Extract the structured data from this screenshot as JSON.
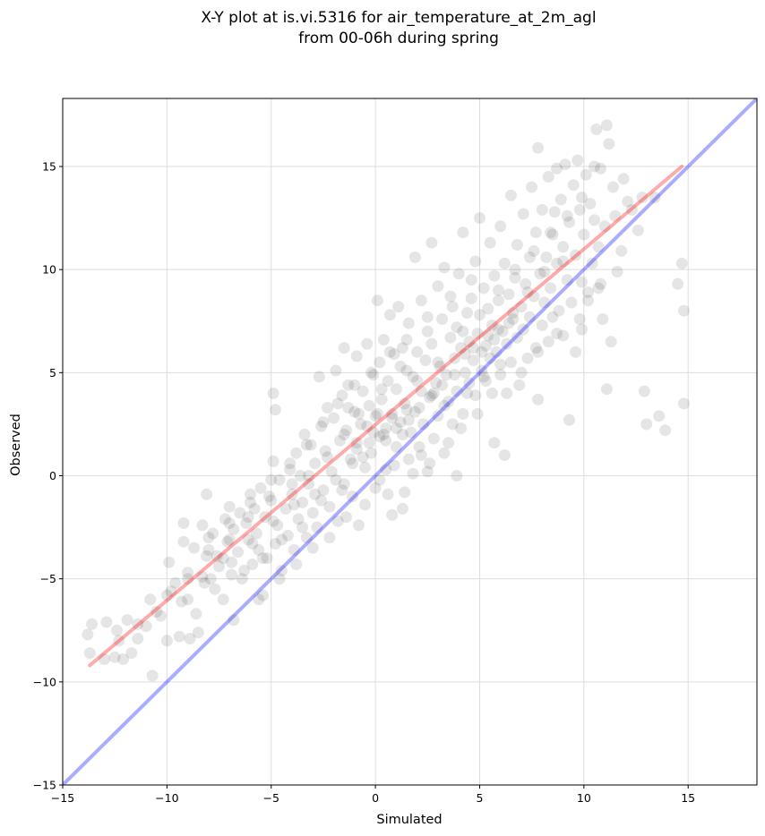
{
  "chart_data": {
    "type": "scatter",
    "title_line1": "X-Y plot at is.vi.5316 for air_temperature_at_2m_agl",
    "title_line2": "from 00-06h during spring",
    "xlabel": "Simulated",
    "ylabel": "Observed",
    "xlim": [
      -15,
      18.3
    ],
    "ylim": [
      -15,
      18.3
    ],
    "xticks": [
      -15,
      -10,
      -5,
      0,
      5,
      10,
      15
    ],
    "yticks": [
      -15,
      -10,
      -5,
      0,
      5,
      10,
      15
    ],
    "xtick_labels": [
      "−15",
      "−10",
      "−5",
      "0",
      "5",
      "10",
      "15"
    ],
    "ytick_labels": [
      "−15",
      "−10",
      "−5",
      "0",
      "5",
      "10",
      "15"
    ],
    "grid": true,
    "colors": {
      "points": "#000000",
      "fit_line": "#ff0000",
      "identity_line": "#0000ff",
      "grid": "#dddddd"
    },
    "fit_line": {
      "x": [
        -13.7,
        14.7
      ],
      "y": [
        -9.2,
        15.0
      ]
    },
    "identity_line": {
      "x": [
        -15,
        18.3
      ],
      "y": [
        -15,
        18.3
      ]
    },
    "points": [
      [
        -13.8,
        -7.7
      ],
      [
        -13.6,
        -7.2
      ],
      [
        -13.7,
        -8.6
      ],
      [
        -12.9,
        -7.1
      ],
      [
        -12.5,
        -8.8
      ],
      [
        -12.4,
        -7.5
      ],
      [
        -12.1,
        -8.9
      ],
      [
        -11.9,
        -7.0
      ],
      [
        -11.7,
        -8.6
      ],
      [
        -11.4,
        -7.2
      ],
      [
        -10.8,
        -6.0
      ],
      [
        -10.7,
        -9.7
      ],
      [
        -10.3,
        -6.8
      ],
      [
        -10.0,
        -8.0
      ],
      [
        -10.0,
        -5.8
      ],
      [
        -9.9,
        -4.2
      ],
      [
        -9.6,
        -5.2
      ],
      [
        -9.4,
        -7.8
      ],
      [
        -9.3,
        -6.1
      ],
      [
        -9.2,
        -3.2
      ],
      [
        -9.2,
        -2.3
      ],
      [
        -9.0,
        -4.7
      ],
      [
        -8.9,
        -7.9
      ],
      [
        -8.7,
        -3.5
      ],
      [
        -8.6,
        -6.7
      ],
      [
        -8.5,
        -7.6
      ],
      [
        -8.3,
        -2.4
      ],
      [
        -8.3,
        -4.9
      ],
      [
        -8.1,
        -0.9
      ],
      [
        -8.0,
        -3.6
      ],
      [
        -7.8,
        -2.8
      ],
      [
        -7.7,
        -5.5
      ],
      [
        -7.6,
        -3.9
      ],
      [
        -7.5,
        -4.4
      ],
      [
        -7.3,
        -6.0
      ],
      [
        -7.2,
        -2.1
      ],
      [
        -7.1,
        -3.2
      ],
      [
        -7.0,
        -1.5
      ],
      [
        -6.9,
        -4.8
      ],
      [
        -6.8,
        -2.6
      ],
      [
        -6.6,
        -3.7
      ],
      [
        -6.5,
        -1.8
      ],
      [
        -6.4,
        -5.0
      ],
      [
        -6.2,
        -2.3
      ],
      [
        -6.1,
        -3.1
      ],
      [
        -6.0,
        -0.9
      ],
      [
        -5.9,
        -4.3
      ],
      [
        -5.8,
        -1.6
      ],
      [
        -5.7,
        -2.8
      ],
      [
        -5.6,
        -3.6
      ],
      [
        -5.5,
        -0.6
      ],
      [
        -5.4,
        -5.8
      ],
      [
        -5.3,
        -2.0
      ],
      [
        -5.2,
        -4.0
      ],
      [
        -5.0,
        -1.2
      ],
      [
        -4.9,
        0.7
      ],
      [
        -4.8,
        -3.3
      ],
      [
        -4.7,
        -2.4
      ],
      [
        -4.6,
        -0.2
      ],
      [
        -4.5,
        -4.6
      ],
      [
        -4.9,
        4.0
      ],
      [
        -4.8,
        3.2
      ],
      [
        -4.3,
        -1.6
      ],
      [
        -4.2,
        -2.9
      ],
      [
        -4.1,
        0.3
      ],
      [
        -4.0,
        -0.9
      ],
      [
        -3.9,
        -3.6
      ],
      [
        -3.8,
        1.1
      ],
      [
        -3.7,
        -2.1
      ],
      [
        -3.6,
        0.0
      ],
      [
        -3.5,
        -1.3
      ],
      [
        -3.4,
        2.0
      ],
      [
        -3.3,
        -3.0
      ],
      [
        -3.2,
        -0.4
      ],
      [
        -3.1,
        1.5
      ],
      [
        -3.0,
        -1.8
      ],
      [
        -2.9,
        0.6
      ],
      [
        -2.8,
        -2.5
      ],
      [
        -2.7,
        4.8
      ],
      [
        -2.6,
        2.4
      ],
      [
        -2.5,
        -0.7
      ],
      [
        -2.4,
        1.2
      ],
      [
        -2.3,
        3.3
      ],
      [
        -2.2,
        -1.5
      ],
      [
        -2.1,
        0.2
      ],
      [
        -2.0,
        2.8
      ],
      [
        -1.9,
        5.1
      ],
      [
        -1.8,
        -2.2
      ],
      [
        -1.7,
        1.7
      ],
      [
        -1.6,
        3.9
      ],
      [
        -1.5,
        6.2
      ],
      [
        -1.5,
        -0.4
      ],
      [
        -1.4,
        2.2
      ],
      [
        -1.3,
        4.4
      ],
      [
        -1.2,
        0.8
      ],
      [
        -1.1,
        -1.0
      ],
      [
        -1.0,
        3.1
      ],
      [
        -0.9,
        5.8
      ],
      [
        -0.9,
        1.6
      ],
      [
        -0.8,
        -2.4
      ],
      [
        -0.7,
        2.5
      ],
      [
        -0.6,
        4.1
      ],
      [
        -0.5,
        0.4
      ],
      [
        -0.4,
        6.4
      ],
      [
        -0.3,
        3.4
      ],
      [
        -0.2,
        1.1
      ],
      [
        -0.1,
        4.9
      ],
      [
        0.0,
        2.9
      ],
      [
        0.0,
        -0.6
      ],
      [
        0.1,
        8.5
      ],
      [
        0.2,
        5.5
      ],
      [
        0.2,
        1.9
      ],
      [
        0.3,
        3.7
      ],
      [
        0.4,
        6.6
      ],
      [
        0.5,
        2.3
      ],
      [
        0.5,
        0.3
      ],
      [
        0.6,
        4.6
      ],
      [
        0.7,
        7.8
      ],
      [
        0.8,
        3.0
      ],
      [
        0.8,
        -1.9
      ],
      [
        0.9,
        5.9
      ],
      [
        1.0,
        1.4
      ],
      [
        1.0,
        4.2
      ],
      [
        1.1,
        8.2
      ],
      [
        1.2,
        2.6
      ],
      [
        1.3,
        6.2
      ],
      [
        1.3,
        -1.6
      ],
      [
        1.4,
        3.5
      ],
      [
        1.5,
        5.1
      ],
      [
        1.6,
        0.8
      ],
      [
        1.6,
        7.4
      ],
      [
        1.7,
        2.1
      ],
      [
        1.8,
        4.8
      ],
      [
        1.9,
        10.6
      ],
      [
        1.9,
        3.1
      ],
      [
        2.0,
        6.0
      ],
      [
        2.1,
        1.4
      ],
      [
        2.2,
        8.5
      ],
      [
        2.2,
        4.1
      ],
      [
        2.3,
        2.5
      ],
      [
        2.4,
        5.6
      ],
      [
        2.5,
        7.0
      ],
      [
        2.5,
        0.2
      ],
      [
        2.6,
        3.8
      ],
      [
        2.7,
        11.3
      ],
      [
        2.7,
        6.4
      ],
      [
        2.8,
        1.8
      ],
      [
        2.9,
        4.5
      ],
      [
        3.0,
        9.2
      ],
      [
        3.0,
        2.9
      ],
      [
        3.1,
        5.3
      ],
      [
        3.2,
        7.6
      ],
      [
        3.3,
        3.4
      ],
      [
        3.3,
        10.1
      ],
      [
        3.4,
        4.9
      ],
      [
        3.5,
        1.6
      ],
      [
        3.6,
        6.7
      ],
      [
        3.6,
        8.7
      ],
      [
        3.7,
        2.5
      ],
      [
        3.8,
        5.7
      ],
      [
        3.9,
        7.2
      ],
      [
        3.9,
        4.1
      ],
      [
        4.0,
        9.8
      ],
      [
        4.1,
        6.2
      ],
      [
        4.2,
        3.0
      ],
      [
        4.2,
        11.8
      ],
      [
        4.3,
        5.0
      ],
      [
        4.4,
        7.9
      ],
      [
        4.5,
        6.5
      ],
      [
        4.5,
        4.5
      ],
      [
        4.6,
        8.6
      ],
      [
        4.7,
        5.6
      ],
      [
        4.8,
        3.9
      ],
      [
        4.8,
        10.4
      ],
      [
        4.9,
        6.9
      ],
      [
        5.0,
        7.8
      ],
      [
        5.0,
        12.5
      ],
      [
        5.1,
        5.1
      ],
      [
        5.2,
        9.1
      ],
      [
        5.3,
        6.3
      ],
      [
        5.3,
        4.6
      ],
      [
        5.4,
        8.1
      ],
      [
        5.5,
        11.3
      ],
      [
        5.5,
        5.7
      ],
      [
        5.6,
        7.3
      ],
      [
        5.7,
        1.6
      ],
      [
        5.7,
        9.7
      ],
      [
        5.8,
        6.0
      ],
      [
        5.9,
        8.5
      ],
      [
        6.0,
        12.1
      ],
      [
        6.0,
        4.9
      ],
      [
        6.1,
        7.0
      ],
      [
        6.2,
        1.0
      ],
      [
        6.2,
        10.3
      ],
      [
        6.3,
        6.4
      ],
      [
        6.4,
        8.8
      ],
      [
        6.5,
        13.6
      ],
      [
        6.5,
        5.5
      ],
      [
        6.6,
        7.6
      ],
      [
        6.7,
        9.6
      ],
      [
        6.8,
        11.2
      ],
      [
        6.8,
        6.7
      ],
      [
        6.9,
        4.4
      ],
      [
        7.0,
        8.2
      ],
      [
        7.1,
        12.7
      ],
      [
        7.1,
        7.1
      ],
      [
        7.2,
        9.3
      ],
      [
        7.3,
        5.7
      ],
      [
        7.4,
        10.6
      ],
      [
        7.4,
        7.7
      ],
      [
        7.5,
        14.0
      ],
      [
        7.6,
        8.7
      ],
      [
        7.7,
        6.2
      ],
      [
        7.7,
        11.8
      ],
      [
        7.8,
        3.7
      ],
      [
        7.8,
        15.9
      ],
      [
        7.9,
        9.8
      ],
      [
        8.0,
        7.3
      ],
      [
        8.0,
        12.9
      ],
      [
        8.1,
        8.4
      ],
      [
        8.2,
        10.6
      ],
      [
        8.3,
        6.5
      ],
      [
        8.3,
        14.5
      ],
      [
        8.4,
        9.1
      ],
      [
        8.5,
        11.7
      ],
      [
        8.5,
        7.7
      ],
      [
        8.6,
        12.8
      ],
      [
        8.7,
        14.9
      ],
      [
        8.7,
        10.3
      ],
      [
        8.8,
        8.0
      ],
      [
        8.9,
        13.4
      ],
      [
        9.0,
        11.1
      ],
      [
        9.0,
        6.8
      ],
      [
        9.1,
        15.1
      ],
      [
        9.2,
        9.5
      ],
      [
        9.3,
        2.7
      ],
      [
        9.3,
        12.3
      ],
      [
        9.4,
        8.4
      ],
      [
        9.5,
        14.1
      ],
      [
        9.6,
        10.7
      ],
      [
        9.7,
        15.3
      ],
      [
        9.8,
        7.6
      ],
      [
        9.8,
        12.9
      ],
      [
        9.9,
        9.4
      ],
      [
        10.0,
        11.7
      ],
      [
        10.1,
        14.6
      ],
      [
        10.2,
        8.5
      ],
      [
        10.3,
        13.2
      ],
      [
        10.4,
        10.3
      ],
      [
        10.5,
        15.0
      ],
      [
        10.6,
        16.8
      ],
      [
        10.7,
        11.1
      ],
      [
        10.7,
        9.1
      ],
      [
        10.8,
        14.9
      ],
      [
        10.9,
        7.6
      ],
      [
        11.0,
        12.1
      ],
      [
        11.1,
        4.2
      ],
      [
        11.1,
        17.0
      ],
      [
        11.2,
        16.1
      ],
      [
        11.3,
        6.5
      ],
      [
        11.5,
        12.6
      ],
      [
        11.6,
        9.9
      ],
      [
        11.8,
        10.9
      ],
      [
        12.1,
        13.3
      ],
      [
        12.3,
        12.9
      ],
      [
        12.6,
        11.9
      ],
      [
        12.8,
        13.5
      ],
      [
        12.9,
        4.1
      ],
      [
        13.0,
        2.5
      ],
      [
        13.4,
        13.5
      ],
      [
        13.6,
        2.9
      ],
      [
        13.9,
        2.2
      ],
      [
        14.5,
        9.3
      ],
      [
        14.7,
        10.3
      ],
      [
        14.8,
        8.0
      ],
      [
        14.8,
        3.5
      ],
      [
        4.9,
        3.0
      ],
      [
        5.6,
        4.0
      ],
      [
        3.9,
        0.0
      ],
      [
        2.2,
        1.0
      ],
      [
        1.4,
        -0.8
      ],
      [
        0.6,
        -0.9
      ],
      [
        -0.5,
        -1.4
      ],
      [
        -1.4,
        -2.0
      ],
      [
        -2.2,
        -3.0
      ],
      [
        -3.0,
        -3.5
      ],
      [
        -3.8,
        -4.3
      ],
      [
        -4.6,
        -5.0
      ],
      [
        -5.6,
        -6.0
      ],
      [
        -6.8,
        -7.0
      ],
      [
        6.3,
        4.0
      ],
      [
        7.0,
        5.0
      ],
      [
        7.8,
        6.0
      ],
      [
        8.7,
        6.9
      ],
      [
        9.6,
        6.0
      ],
      [
        9.9,
        7.1
      ],
      [
        10.2,
        8.9
      ],
      [
        10.8,
        9.3
      ],
      [
        4.1,
        2.3
      ],
      [
        3.3,
        1.1
      ],
      [
        2.6,
        0.6
      ],
      [
        1.8,
        0.1
      ],
      [
        0.9,
        0.5
      ],
      [
        0.2,
        -0.2
      ],
      [
        -0.6,
        0.9
      ],
      [
        -1.6,
        -0.7
      ],
      [
        -2.6,
        -1.2
      ],
      [
        -3.5,
        -2.5
      ],
      [
        -4.5,
        -3.1
      ],
      [
        -5.4,
        -4.0
      ],
      [
        -6.3,
        -4.6
      ],
      [
        -7.3,
        -4.0
      ],
      [
        -8.2,
        -5.2
      ],
      [
        -9.0,
        -6.0
      ],
      [
        3.5,
        3.6
      ],
      [
        4.4,
        4.0
      ],
      [
        5.2,
        4.8
      ],
      [
        6.0,
        5.4
      ],
      [
        2.8,
        4.0
      ],
      [
        1.5,
        3.2
      ],
      [
        0.4,
        2.0
      ],
      [
        -0.3,
        1.6
      ],
      [
        -1.1,
        0.6
      ],
      [
        -1.9,
        -0.2
      ],
      [
        -2.9,
        -0.9
      ],
      [
        -3.9,
        -1.4
      ],
      [
        -4.9,
        -2.2
      ],
      [
        -5.9,
        -3.3
      ],
      [
        -6.9,
        -4.2
      ],
      [
        -7.9,
        -5.0
      ],
      [
        5.9,
        9.0
      ],
      [
        6.7,
        10.0
      ],
      [
        7.6,
        10.9
      ],
      [
        8.4,
        11.8
      ],
      [
        9.2,
        12.6
      ],
      [
        4.6,
        9.5
      ],
      [
        3.7,
        8.2
      ],
      [
        2.5,
        7.7
      ],
      [
        1.5,
        6.6
      ],
      [
        0.7,
        6.0
      ],
      [
        -0.2,
        5.0
      ],
      [
        -1.0,
        4.4
      ],
      [
        -1.8,
        3.5
      ],
      [
        -2.5,
        2.6
      ],
      [
        -3.3,
        1.5
      ],
      [
        -4.1,
        0.6
      ],
      [
        -5.0,
        -0.2
      ],
      [
        -6.0,
        -1.3
      ],
      [
        -7.0,
        -2.3
      ],
      [
        -8.0,
        -3.0
      ],
      [
        9.9,
        13.5
      ],
      [
        10.5,
        12.4
      ],
      [
        11.4,
        14.0
      ],
      [
        11.9,
        14.4
      ],
      [
        4.2,
        7.0
      ],
      [
        5.4,
        6.8
      ],
      [
        6.6,
        7.9
      ],
      [
        7.3,
        8.9
      ],
      [
        8.1,
        9.9
      ],
      [
        9.0,
        10.4
      ],
      [
        3.0,
        5.5
      ],
      [
        2.0,
        4.6
      ],
      [
        1.2,
        5.3
      ],
      [
        0.3,
        4.2
      ],
      [
        -0.8,
        3.0
      ],
      [
        -1.5,
        2.0
      ],
      [
        -2.3,
        0.9
      ],
      [
        -3.2,
        0.0
      ],
      [
        -4.0,
        -0.4
      ],
      [
        -5.1,
        -1.0
      ],
      [
        -6.1,
        -2.0
      ],
      [
        -7.0,
        -3.1
      ],
      [
        -8.1,
        -3.9
      ],
      [
        -9.0,
        -5.0
      ],
      [
        -9.8,
        -5.6
      ],
      [
        -10.5,
        -6.6
      ],
      [
        -11.4,
        -7.9
      ],
      [
        -12.3,
        -8.0
      ],
      [
        -13.0,
        -8.9
      ],
      [
        -11.0,
        -7.3
      ],
      [
        5.1,
        6.0
      ],
      [
        5.7,
        6.6
      ],
      [
        4.7,
        6.2
      ],
      [
        4.3,
        5.9
      ],
      [
        5.9,
        7.1
      ],
      [
        6.4,
        7.4
      ],
      [
        3.8,
        4.9
      ],
      [
        3.2,
        4.4
      ],
      [
        2.7,
        3.9
      ],
      [
        2.1,
        3.3
      ],
      [
        1.6,
        2.7
      ],
      [
        1.0,
        2.3
      ],
      [
        0.5,
        1.7
      ],
      [
        0.1,
        3.0
      ],
      [
        -0.4,
        2.4
      ],
      [
        -0.9,
        1.3
      ],
      [
        -1.3,
        3.3
      ],
      [
        -0.1,
        2.1
      ],
      [
        0.8,
        2.8
      ],
      [
        1.3,
        2.0
      ]
    ]
  }
}
